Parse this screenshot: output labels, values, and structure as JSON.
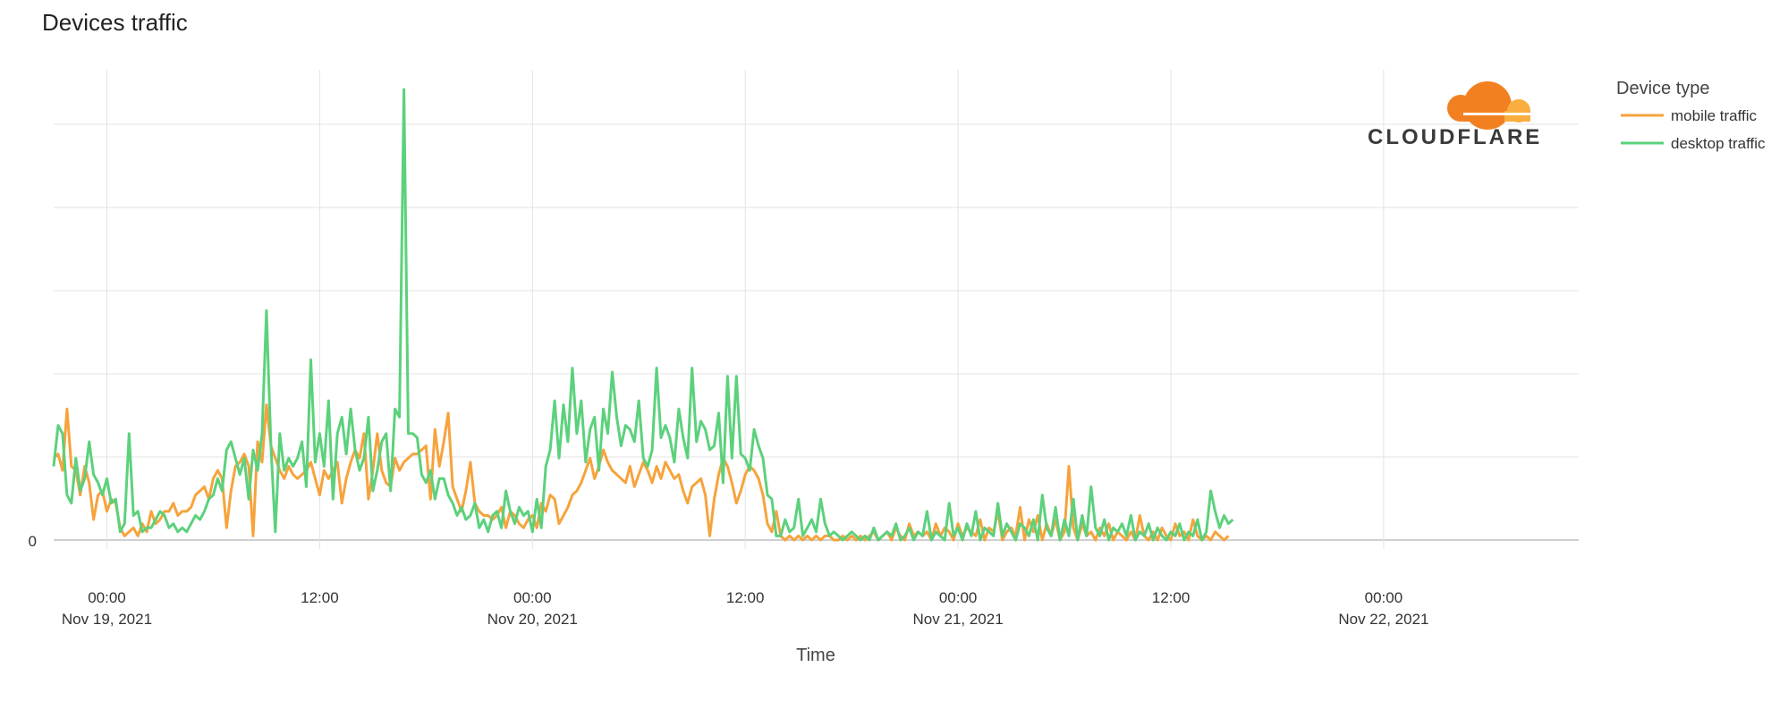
{
  "chart_data": {
    "type": "line",
    "title": "Devices traffic",
    "xlabel": "Time",
    "ylabel": "",
    "y_tick_labels": [
      "0"
    ],
    "x_ticks": [
      {
        "time": "00:00",
        "date": "Nov 19, 2021"
      },
      {
        "time": "12:00",
        "date": ""
      },
      {
        "time": "00:00",
        "date": "Nov 20, 2021"
      },
      {
        "time": "12:00",
        "date": ""
      },
      {
        "time": "00:00",
        "date": "Nov 21, 2021"
      },
      {
        "time": "12:00",
        "date": ""
      },
      {
        "time": "00:00",
        "date": "Nov 22, 2021"
      }
    ],
    "x_range": [
      "Nov 18, 2021 21:00",
      "Nov 22, 2021 11:00"
    ],
    "ylim": [
      0,
      5.5
    ],
    "grid": true,
    "legend": {
      "title": "Device type",
      "placement": "top-right"
    },
    "series": [
      {
        "name": "mobile traffic",
        "color": "#f6a33c",
        "start": "Nov 18, 2021 21:00",
        "interval_minutes": 15,
        "values": [
          1.0,
          1.05,
          0.85,
          1.6,
          0.9,
          0.85,
          0.55,
          0.9,
          0.7,
          0.25,
          0.55,
          0.6,
          0.35,
          0.5,
          0.45,
          0.15,
          0.05,
          0.1,
          0.15,
          0.05,
          0.2,
          0.1,
          0.35,
          0.2,
          0.25,
          0.35,
          0.35,
          0.45,
          0.3,
          0.35,
          0.35,
          0.4,
          0.55,
          0.6,
          0.65,
          0.5,
          0.75,
          0.85,
          0.75,
          0.15,
          0.6,
          0.9,
          0.95,
          1.05,
          0.9,
          0.05,
          1.2,
          0.95,
          1.65,
          1.15,
          1.0,
          0.85,
          0.75,
          0.9,
          0.8,
          0.75,
          0.8,
          0.85,
          0.95,
          0.75,
          0.55,
          0.85,
          0.75,
          0.85,
          0.95,
          0.45,
          0.75,
          0.95,
          1.1,
          1.0,
          1.3,
          0.5,
          0.85,
          1.3,
          0.85,
          0.7,
          0.65,
          1.0,
          0.85,
          0.95,
          1.0,
          1.05,
          1.05,
          1.1,
          1.15,
          0.5,
          1.35,
          0.9,
          1.2,
          1.55,
          0.65,
          0.5,
          0.35,
          0.6,
          0.95,
          0.45,
          0.35,
          0.3,
          0.3,
          0.25,
          0.3,
          0.4,
          0.15,
          0.35,
          0.3,
          0.2,
          0.15,
          0.25,
          0.3,
          0.15,
          0.45,
          0.35,
          0.55,
          0.5,
          0.2,
          0.3,
          0.4,
          0.55,
          0.6,
          0.7,
          0.85,
          1.0,
          0.75,
          0.9,
          1.1,
          0.95,
          0.85,
          0.8,
          0.75,
          0.7,
          0.9,
          0.65,
          0.8,
          0.95,
          0.85,
          0.7,
          0.9,
          0.75,
          0.95,
          0.85,
          0.75,
          0.8,
          0.6,
          0.45,
          0.65,
          0.7,
          0.75,
          0.55,
          0.05,
          0.5,
          0.8,
          1.0,
          0.9,
          0.7,
          0.45,
          0.6,
          0.8,
          0.9,
          0.85,
          0.75,
          0.55,
          0.2,
          0.1,
          0.35,
          0.05,
          0.0,
          0.05,
          0.0,
          0.05,
          0.0,
          0.05,
          0.0,
          0.05,
          0.0,
          0.05,
          0.05,
          0.0,
          0.0,
          0.05,
          0.0,
          0.05,
          0.0,
          0.05,
          0.0,
          0.05,
          0.1,
          0.0,
          0.05,
          0.1,
          0.0,
          0.15,
          0.05,
          0.0,
          0.2,
          0.05,
          0.1,
          0.05,
          0.1,
          0.0,
          0.2,
          0.05,
          0.15,
          0.1,
          0.0,
          0.2,
          0.05,
          0.15,
          0.1,
          0.05,
          0.25,
          0.0,
          0.15,
          0.1,
          0.35,
          0.0,
          0.1,
          0.15,
          0.05,
          0.4,
          0.0,
          0.25,
          0.1,
          0.3,
          0.0,
          0.2,
          0.05,
          0.25,
          0.0,
          0.1,
          0.9,
          0.15,
          0.0,
          0.2,
          0.05,
          0.1,
          0.0,
          0.15,
          0.05,
          0.2,
          0.0,
          0.1,
          0.05,
          0.0,
          0.1,
          0.0,
          0.3,
          0.05,
          0.0,
          0.1,
          0.0,
          0.15,
          0.05,
          0.0,
          0.2,
          0.05,
          0.1,
          0.0,
          0.25,
          0.05,
          0.0,
          0.05,
          0.0,
          0.1,
          0.05,
          0.0,
          0.05
        ]
      },
      {
        "name": "desktop traffic",
        "color": "#5cd17c",
        "start": "Nov 18, 2021 21:00",
        "interval_minutes": 15,
        "values": [
          0.9,
          1.4,
          1.3,
          0.55,
          0.45,
          1.0,
          0.6,
          0.75,
          1.2,
          0.8,
          0.7,
          0.55,
          0.75,
          0.45,
          0.5,
          0.1,
          0.2,
          1.3,
          0.3,
          0.35,
          0.1,
          0.15,
          0.15,
          0.25,
          0.35,
          0.3,
          0.15,
          0.2,
          0.1,
          0.15,
          0.1,
          0.2,
          0.3,
          0.25,
          0.35,
          0.5,
          0.55,
          0.75,
          0.6,
          1.1,
          1.2,
          1.0,
          0.8,
          1.0,
          0.5,
          1.1,
          0.85,
          1.3,
          2.8,
          1.15,
          0.1,
          1.3,
          0.85,
          1.0,
          0.9,
          1.0,
          1.2,
          0.65,
          2.2,
          0.95,
          1.3,
          0.9,
          1.7,
          0.5,
          1.3,
          1.5,
          1.05,
          1.6,
          1.1,
          0.85,
          1.0,
          1.5,
          0.6,
          0.85,
          1.2,
          1.3,
          0.6,
          1.6,
          1.5,
          5.5,
          1.3,
          1.3,
          1.25,
          0.8,
          0.7,
          0.85,
          0.5,
          0.75,
          0.75,
          0.55,
          0.45,
          0.3,
          0.4,
          0.25,
          0.3,
          0.45,
          0.15,
          0.25,
          0.1,
          0.3,
          0.35,
          0.15,
          0.6,
          0.35,
          0.2,
          0.4,
          0.3,
          0.35,
          0.1,
          0.5,
          0.15,
          0.9,
          1.1,
          1.7,
          1.0,
          1.65,
          1.2,
          2.1,
          1.3,
          1.7,
          0.95,
          1.35,
          1.5,
          0.85,
          1.6,
          1.3,
          2.05,
          1.5,
          1.15,
          1.4,
          1.35,
          1.2,
          1.7,
          1.0,
          0.9,
          1.1,
          2.1,
          1.25,
          1.4,
          1.25,
          0.95,
          1.6,
          1.25,
          1.0,
          2.1,
          1.2,
          1.45,
          1.35,
          1.1,
          1.15,
          1.55,
          0.7,
          2.0,
          1.0,
          2.0,
          1.05,
          1.0,
          0.85,
          1.35,
          1.15,
          1.0,
          0.55,
          0.5,
          0.05,
          0.05,
          0.25,
          0.1,
          0.15,
          0.5,
          0.05,
          0.15,
          0.25,
          0.1,
          0.5,
          0.2,
          0.05,
          0.1,
          0.05,
          0.0,
          0.05,
          0.1,
          0.05,
          0.0,
          0.05,
          0.0,
          0.15,
          0.0,
          0.05,
          0.1,
          0.05,
          0.2,
          0.0,
          0.05,
          0.15,
          0.0,
          0.1,
          0.05,
          0.35,
          0.0,
          0.1,
          0.05,
          0.0,
          0.45,
          0.05,
          0.15,
          0.0,
          0.2,
          0.05,
          0.35,
          0.0,
          0.15,
          0.1,
          0.05,
          0.45,
          0.05,
          0.2,
          0.1,
          0.0,
          0.2,
          0.15,
          0.05,
          0.25,
          0.0,
          0.55,
          0.15,
          0.05,
          0.4,
          0.0,
          0.25,
          0.05,
          0.5,
          0.0,
          0.3,
          0.05,
          0.65,
          0.15,
          0.05,
          0.25,
          0.0,
          0.15,
          0.1,
          0.2,
          0.05,
          0.3,
          0.0,
          0.1,
          0.05,
          0.2,
          0.0,
          0.15,
          0.05,
          0.0,
          0.1,
          0.05,
          0.2,
          0.0,
          0.1,
          0.05,
          0.25,
          0.0,
          0.1,
          0.6,
          0.35,
          0.15,
          0.3,
          0.2,
          0.25
        ]
      }
    ]
  },
  "legend": {
    "title": "Device type",
    "items": [
      {
        "label": "mobile traffic",
        "color": "#f6a33c"
      },
      {
        "label": "desktop traffic",
        "color": "#5cd17c"
      }
    ]
  },
  "brand": {
    "name": "CLOUDFLARE",
    "cloud_color": "#f38020",
    "cloud_light_color": "#faae40"
  }
}
